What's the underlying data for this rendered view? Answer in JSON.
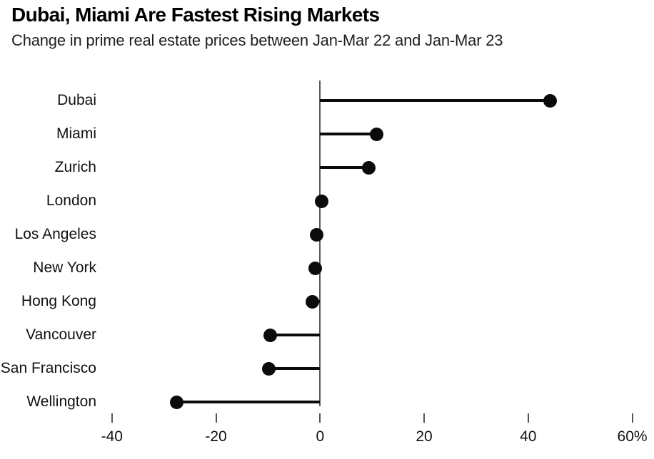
{
  "header": {
    "title": "Dubai, Miami Are Fastest Rising Markets",
    "subtitle": "Change in prime real estate prices between Jan-Mar 22 and Jan-Mar 23"
  },
  "colors": {
    "background": "#ffffff",
    "title_text": "#000000",
    "subtitle_text": "#1f1f1f",
    "zero_axis_line": "#58585a",
    "lollipop": "#0b0b0b",
    "tick_mark": "#555555",
    "label_text": "#111111"
  },
  "chart_data": {
    "type": "bar",
    "variant": "lollipop",
    "orientation": "horizontal",
    "title": "Dubai, Miami Are Fastest Rising Markets",
    "subtitle": "Change in prime real estate prices between Jan-Mar 22 and Jan-Mar 23",
    "unit": "%",
    "categories": [
      "Dubai",
      "Miami",
      "Zurich",
      "London",
      "Los Angeles",
      "New York",
      "Hong Kong",
      "Vancouver",
      "San Francisco",
      "Wellington"
    ],
    "values": [
      44.2,
      10.8,
      9.4,
      0.3,
      -0.7,
      -1.0,
      -1.5,
      -9.6,
      -9.9,
      -27.5
    ],
    "xlabel": "",
    "ylabel": "",
    "xlim": [
      -61,
      64
    ],
    "baseline": 0,
    "grid": false,
    "legend": false,
    "x_ticks": [
      {
        "value": -40,
        "label": "-40"
      },
      {
        "value": -20,
        "label": "-20"
      },
      {
        "value": 0,
        "label": "0"
      },
      {
        "value": 20,
        "label": "20"
      },
      {
        "value": 40,
        "label": "40"
      },
      {
        "value": 60,
        "label": "60%"
      }
    ],
    "notes": "San Francisco category label is clipped by the left image edge, rendering as 'an Francisco'"
  }
}
